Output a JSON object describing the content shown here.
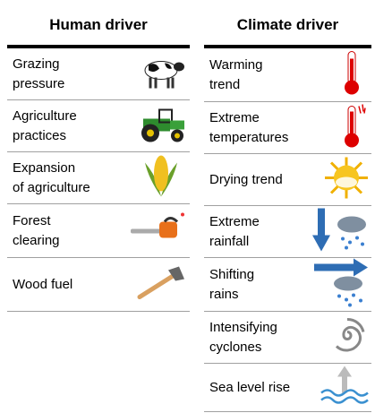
{
  "columns": [
    {
      "header": "Human driver",
      "rows": [
        {
          "lines": [
            "Grazing",
            "pressure"
          ]
        },
        {
          "lines": [
            "Agriculture",
            "practices"
          ]
        },
        {
          "lines": [
            "Expansion",
            "of agriculture"
          ]
        },
        {
          "lines": [
            "Forest",
            "clearing"
          ]
        },
        {
          "lines": [
            "Wood fuel"
          ]
        }
      ]
    },
    {
      "header": "Climate driver",
      "rows": [
        {
          "lines": [
            "Warming",
            "trend"
          ]
        },
        {
          "lines": [
            "Extreme",
            "temperatures"
          ]
        },
        {
          "lines": [
            "Drying trend"
          ]
        },
        {
          "lines": [
            "Extreme",
            "rainfall"
          ]
        },
        {
          "lines": [
            "Shifting",
            "rains"
          ]
        },
        {
          "lines": [
            "Intensifying",
            "cyclones"
          ]
        },
        {
          "lines": [
            "Sea level rise"
          ]
        }
      ]
    }
  ]
}
